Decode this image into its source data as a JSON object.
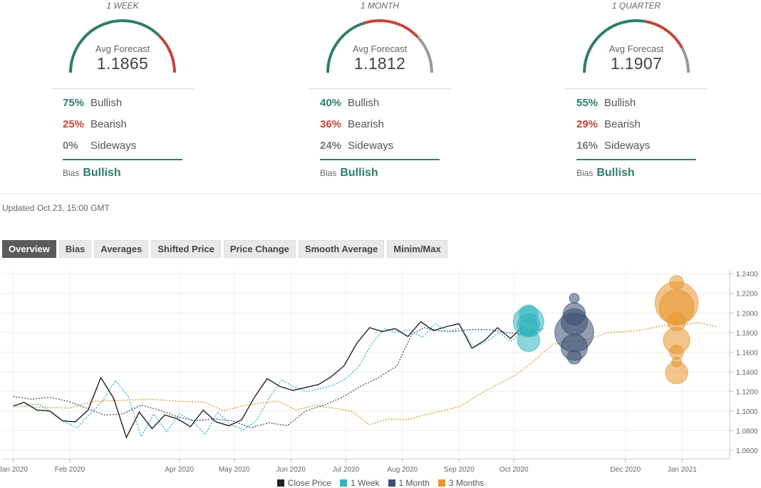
{
  "panels": [
    {
      "title": "1 WEEK",
      "gauge_label": "Avg Forecast",
      "avg_forecast": "1.1865",
      "bullish_pct": "75%",
      "bullish_label": "Bullish",
      "bearish_pct": "25%",
      "bearish_label": "Bearish",
      "sideways_pct": "0%",
      "sideways_label": "Sideways",
      "bias_label": "Bias",
      "bias_value": "Bullish",
      "gauge_split": [
        0.75,
        0.25,
        0.0
      ]
    },
    {
      "title": "1 MONTH",
      "gauge_label": "Avg Forecast",
      "avg_forecast": "1.1812",
      "bullish_pct": "40%",
      "bullish_label": "Bullish",
      "bearish_pct": "36%",
      "bearish_label": "Bearish",
      "sideways_pct": "24%",
      "sideways_label": "Sideways",
      "bias_label": "Bias",
      "bias_value": "Bullish",
      "gauge_split": [
        0.4,
        0.36,
        0.24
      ]
    },
    {
      "title": "1 QUARTER",
      "gauge_label": "Avg Forecast",
      "avg_forecast": "1.1907",
      "bullish_pct": "55%",
      "bullish_label": "Bullish",
      "bearish_pct": "29%",
      "bearish_label": "Bearish",
      "sideways_pct": "16%",
      "sideways_label": "Sideways",
      "bias_label": "Bias",
      "bias_value": "Bullish",
      "gauge_split": [
        0.55,
        0.29,
        0.16
      ]
    }
  ],
  "colors": {
    "bullish": "#2e7d6b",
    "bearish": "#c0483a",
    "sideways": "#999999",
    "close_price": "#222222",
    "one_week": "#2fb5bd",
    "one_month": "#3b4f70",
    "three_months": "#e8952e"
  },
  "updated": "Updated Oct 23, 15:00 GMT",
  "tabs": [
    "Overview",
    "Bias",
    "Averages",
    "Shifted Price",
    "Price Change",
    "Smooth Average",
    "Minim/Max"
  ],
  "active_tab": 0,
  "chart_data": {
    "type": "line",
    "x_ticks": [
      "Jan 2020",
      "Feb 2020",
      "Apr 2020",
      "May 2020",
      "Jun 2020",
      "Jul 2020",
      "Aug 2020",
      "Sep 2020",
      "Oct 2020",
      "Dec 2020",
      "Jan 2021"
    ],
    "x_tick_days": [
      0,
      31,
      91,
      121,
      152,
      182,
      213,
      244,
      274,
      335,
      366
    ],
    "x_range_days": [
      -6,
      392
    ],
    "y_ticks": [
      "1.0600",
      "1.0800",
      "1.1000",
      "1.1200",
      "1.1400",
      "1.1600",
      "1.1800",
      "1.2000",
      "1.2200",
      "1.2400"
    ],
    "ylim": [
      1.0513,
      1.2445
    ],
    "grid": true,
    "legend_position": "bottom-center",
    "legend": [
      "Close Price",
      "1 Week",
      "1 Month",
      "3 Months"
    ],
    "series": [
      {
        "name": "Close Price",
        "style": "solid",
        "points": [
          [
            0,
            1.105
          ],
          [
            6,
            1.109
          ],
          [
            13,
            1.101
          ],
          [
            20,
            1.1
          ],
          [
            27,
            1.09
          ],
          [
            34,
            1.089
          ],
          [
            41,
            1.101
          ],
          [
            48,
            1.134
          ],
          [
            55,
            1.113
          ],
          [
            62,
            1.073
          ],
          [
            69,
            1.099
          ],
          [
            76,
            1.082
          ],
          [
            83,
            1.096
          ],
          [
            90,
            1.092
          ],
          [
            97,
            1.084
          ],
          [
            104,
            1.101
          ],
          [
            111,
            1.089
          ],
          [
            118,
            1.085
          ],
          [
            125,
            1.091
          ],
          [
            132,
            1.114
          ],
          [
            139,
            1.133
          ],
          [
            146,
            1.125
          ],
          [
            153,
            1.121
          ],
          [
            160,
            1.124
          ],
          [
            167,
            1.127
          ],
          [
            174,
            1.135
          ],
          [
            181,
            1.146
          ],
          [
            188,
            1.169
          ],
          [
            195,
            1.185
          ],
          [
            202,
            1.181
          ],
          [
            209,
            1.184
          ],
          [
            216,
            1.176
          ],
          [
            223,
            1.191
          ],
          [
            230,
            1.182
          ],
          [
            237,
            1.186
          ],
          [
            244,
            1.189
          ],
          [
            251,
            1.164
          ],
          [
            258,
            1.172
          ],
          [
            265,
            1.185
          ],
          [
            272,
            1.174
          ],
          [
            279,
            1.186
          ]
        ]
      },
      {
        "name": "1 Week",
        "style": "dotted",
        "points": [
          [
            7,
            1.106
          ],
          [
            14,
            1.107
          ],
          [
            21,
            1.099
          ],
          [
            28,
            1.089
          ],
          [
            35,
            1.083
          ],
          [
            42,
            1.097
          ],
          [
            49,
            1.11
          ],
          [
            56,
            1.131
          ],
          [
            63,
            1.115
          ],
          [
            70,
            1.074
          ],
          [
            77,
            1.097
          ],
          [
            84,
            1.079
          ],
          [
            91,
            1.097
          ],
          [
            98,
            1.09
          ],
          [
            105,
            1.076
          ],
          [
            112,
            1.099
          ],
          [
            119,
            1.086
          ],
          [
            126,
            1.081
          ],
          [
            133,
            1.09
          ],
          [
            140,
            1.113
          ],
          [
            147,
            1.132
          ],
          [
            154,
            1.124
          ],
          [
            161,
            1.12
          ],
          [
            168,
            1.123
          ],
          [
            175,
            1.126
          ],
          [
            182,
            1.133
          ],
          [
            189,
            1.145
          ],
          [
            196,
            1.168
          ],
          [
            203,
            1.184
          ],
          [
            210,
            1.18
          ],
          [
            217,
            1.183
          ],
          [
            224,
            1.175
          ],
          [
            231,
            1.189
          ],
          [
            238,
            1.181
          ],
          [
            245,
            1.185
          ],
          [
            252,
            1.165
          ],
          [
            259,
            1.171
          ],
          [
            266,
            1.18
          ],
          [
            272,
            1.171
          ],
          [
            280,
            1.183
          ]
        ]
      },
      {
        "name": "1 Month",
        "style": "dotted",
        "points": [
          [
            0,
            1.115
          ],
          [
            10,
            1.112
          ],
          [
            20,
            1.114
          ],
          [
            30,
            1.11
          ],
          [
            40,
            1.103
          ],
          [
            50,
            1.096
          ],
          [
            60,
            1.097
          ],
          [
            70,
            1.106
          ],
          [
            80,
            1.101
          ],
          [
            90,
            1.094
          ],
          [
            100,
            1.09
          ],
          [
            110,
            1.092
          ],
          [
            120,
            1.09
          ],
          [
            130,
            1.083
          ],
          [
            140,
            1.088
          ],
          [
            150,
            1.085
          ],
          [
            160,
            1.1
          ],
          [
            170,
            1.106
          ],
          [
            180,
            1.114
          ],
          [
            190,
            1.125
          ],
          [
            200,
            1.134
          ],
          [
            210,
            1.146
          ],
          [
            218,
            1.178
          ],
          [
            225,
            1.185
          ],
          [
            232,
            1.182
          ],
          [
            240,
            1.181
          ],
          [
            250,
            1.183
          ],
          [
            260,
            1.183
          ],
          [
            270,
            1.18
          ],
          [
            280,
            1.178
          ],
          [
            290,
            1.184
          ]
        ]
      },
      {
        "name": "3 Months",
        "style": "dotted",
        "points": [
          [
            0,
            1.105
          ],
          [
            15,
            1.104
          ],
          [
            30,
            1.103
          ],
          [
            45,
            1.11
          ],
          [
            60,
            1.111
          ],
          [
            75,
            1.112
          ],
          [
            90,
            1.11
          ],
          [
            105,
            1.109
          ],
          [
            115,
            1.1
          ],
          [
            125,
            1.105
          ],
          [
            135,
            1.108
          ],
          [
            145,
            1.11
          ],
          [
            155,
            1.101
          ],
          [
            165,
            1.106
          ],
          [
            175,
            1.103
          ],
          [
            185,
            1.1
          ],
          [
            195,
            1.086
          ],
          [
            205,
            1.092
          ],
          [
            215,
            1.091
          ],
          [
            225,
            1.096
          ],
          [
            235,
            1.1
          ],
          [
            245,
            1.105
          ],
          [
            255,
            1.117
          ],
          [
            265,
            1.127
          ],
          [
            275,
            1.137
          ],
          [
            285,
            1.151
          ],
          [
            295,
            1.168
          ],
          [
            305,
            1.171
          ],
          [
            315,
            1.173
          ],
          [
            325,
            1.18
          ],
          [
            335,
            1.181
          ],
          [
            345,
            1.183
          ],
          [
            355,
            1.187
          ],
          [
            365,
            1.188
          ],
          [
            375,
            1.19
          ],
          [
            385,
            1.186
          ]
        ]
      }
    ],
    "bubbles": [
      {
        "series": "1 Week",
        "day": 282,
        "points": [
          [
            1.191,
            6
          ],
          [
            1.188,
            4
          ],
          [
            1.186,
            3
          ],
          [
            1.172,
            4
          ],
          [
            1.199,
            3
          ]
        ]
      },
      {
        "series": "1 Month",
        "day": 307,
        "points": [
          [
            1.18,
            8
          ],
          [
            1.165,
            5
          ],
          [
            1.191,
            5
          ],
          [
            1.199,
            4
          ],
          [
            1.155,
            2
          ],
          [
            1.215,
            1
          ]
        ]
      },
      {
        "series": "3 Months",
        "day": 363,
        "points": [
          [
            1.21,
            9
          ],
          [
            1.206,
            7
          ],
          [
            1.172,
            5
          ],
          [
            1.191,
            3
          ],
          [
            1.16,
            2
          ],
          [
            1.139,
            4
          ],
          [
            1.231,
            2
          ],
          [
            1.15,
            1
          ]
        ]
      }
    ]
  }
}
